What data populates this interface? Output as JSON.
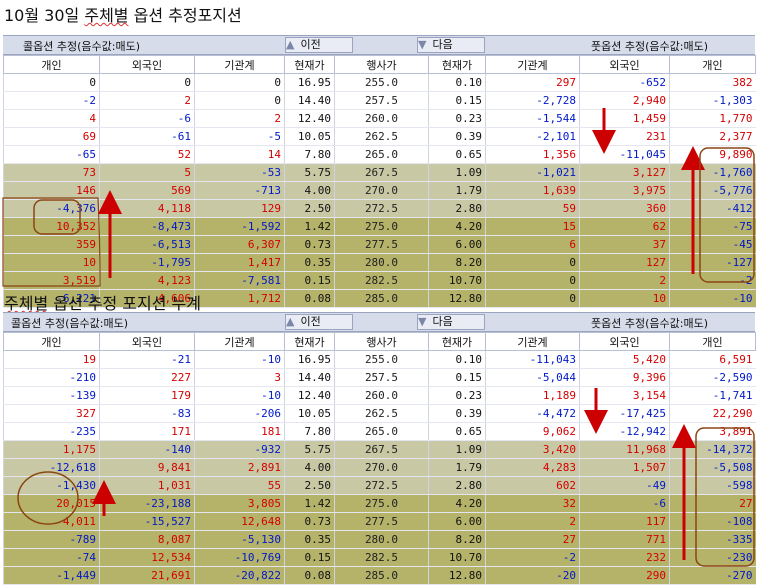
{
  "title1": {
    "pre": "10월 30일 ",
    "ul": "주체별",
    "post": " 옵션 추정포지션"
  },
  "title2": {
    "pre": "",
    "ul": "주체별",
    "post": " 옵션 추정 포지션 누계"
  },
  "header": {
    "call_label": "콜옵션 추정(음수값:매도)",
    "put_label": "풋옵션 추정(음수값:매도)",
    "prev_label": "이전",
    "next_label": "다음",
    "prev_icon": "triangle-up-icon",
    "next_icon": "triangle-down-icon"
  },
  "columns": [
    "개인",
    "외국인",
    "기관계",
    "현재가",
    "행사가",
    "현재가",
    "기관계",
    "외국인",
    "개인"
  ],
  "colors": {
    "positive": "#d40000",
    "negative": "#0018c8",
    "zero": "#111111",
    "header_bg": "#d7dceb",
    "strike_bg": "#f4ecc2",
    "olive": "#c8c9a4",
    "dark_olive": "#b5b26a",
    "annotation": "#cc0000",
    "circle": "#8b4513"
  },
  "table1": [
    {
      "cells": [
        "0",
        "0",
        "0",
        "16.95",
        "255.0",
        "0.10",
        "297",
        "-652",
        "382"
      ]
    },
    {
      "cells": [
        "-2",
        "2",
        "0",
        "14.40",
        "257.5",
        "0.15",
        "-2,728",
        "2,940",
        "-1,303"
      ]
    },
    {
      "cells": [
        "4",
        "-6",
        "2",
        "12.40",
        "260.0",
        "0.23",
        "-1,544",
        "1,459",
        "1,770"
      ]
    },
    {
      "cells": [
        "69",
        "-61",
        "-5",
        "10.05",
        "262.5",
        "0.39",
        "-2,101",
        "231",
        "2,377"
      ]
    },
    {
      "cells": [
        "-65",
        "52",
        "14",
        "7.80",
        "265.0",
        "0.65",
        "1,356",
        "-11,045",
        "9,890"
      ]
    },
    {
      "cells": [
        "73",
        "5",
        "-53",
        "5.75",
        "267.5",
        "1.09",
        "-1,021",
        "3,127",
        "-1,760"
      ]
    },
    {
      "cells": [
        "146",
        "569",
        "-713",
        "4.00",
        "270.0",
        "1.79",
        "1,639",
        "3,975",
        "-5,776"
      ]
    },
    {
      "cells": [
        "-4,376",
        "4,118",
        "129",
        "2.50",
        "272.5",
        "2.80",
        "59",
        "360",
        "-412"
      ]
    },
    {
      "cells": [
        "10,352",
        "-8,473",
        "-1,592",
        "1.42",
        "275.0",
        "4.20",
        "15",
        "62",
        "-75"
      ]
    },
    {
      "cells": [
        "359",
        "-6,513",
        "6,307",
        "0.73",
        "277.5",
        "6.00",
        "6",
        "37",
        "-45"
      ]
    },
    {
      "cells": [
        "10",
        "-1,795",
        "1,417",
        "0.35",
        "280.0",
        "8.20",
        "0",
        "127",
        "-127"
      ]
    },
    {
      "cells": [
        "3,519",
        "4,123",
        "-7,581",
        "0.15",
        "282.5",
        "10.70",
        "0",
        "2",
        "-2"
      ]
    },
    {
      "cells": [
        "-6,221",
        "4,606",
        "1,712",
        "0.08",
        "285.0",
        "12.80",
        "0",
        "10",
        "-10"
      ]
    }
  ],
  "table2": [
    {
      "cells": [
        "19",
        "-21",
        "-10",
        "16.95",
        "255.0",
        "0.10",
        "-11,043",
        "5,420",
        "6,591"
      ]
    },
    {
      "cells": [
        "-210",
        "227",
        "3",
        "14.40",
        "257.5",
        "0.15",
        "-5,044",
        "9,396",
        "-2,590"
      ]
    },
    {
      "cells": [
        "-139",
        "179",
        "-10",
        "12.40",
        "260.0",
        "0.23",
        "1,189",
        "3,154",
        "-1,741"
      ]
    },
    {
      "cells": [
        "327",
        "-83",
        "-206",
        "10.05",
        "262.5",
        "0.39",
        "-4,472",
        "-17,425",
        "22,290"
      ]
    },
    {
      "cells": [
        "-235",
        "171",
        "181",
        "7.80",
        "265.0",
        "0.65",
        "9,062",
        "-12,942",
        "3,891"
      ]
    },
    {
      "cells": [
        "1,175",
        "-140",
        "-932",
        "5.75",
        "267.5",
        "1.09",
        "3,420",
        "11,968",
        "-14,372"
      ]
    },
    {
      "cells": [
        "-12,618",
        "9,841",
        "2,891",
        "4.00",
        "270.0",
        "1.79",
        "4,283",
        "1,507",
        "-5,508"
      ]
    },
    {
      "cells": [
        "-1,430",
        "1,031",
        "55",
        "2.50",
        "272.5",
        "2.80",
        "602",
        "-49",
        "-598"
      ]
    },
    {
      "cells": [
        "20,015",
        "-23,188",
        "3,805",
        "1.42",
        "275.0",
        "4.20",
        "32",
        "-6",
        "27"
      ]
    },
    {
      "cells": [
        "4,011",
        "-15,527",
        "12,648",
        "0.73",
        "277.5",
        "6.00",
        "2",
        "117",
        "-108"
      ]
    },
    {
      "cells": [
        "-789",
        "8,087",
        "-5,130",
        "0.35",
        "280.0",
        "8.20",
        "27",
        "771",
        "-335"
      ]
    },
    {
      "cells": [
        "-74",
        "12,534",
        "-10,769",
        "0.15",
        "282.5",
        "10.70",
        "-2",
        "232",
        "-230"
      ]
    },
    {
      "cells": [
        "-1,449",
        "21,691",
        "-20,822",
        "0.08",
        "285.0",
        "12.80",
        "-20",
        "290",
        "-270"
      ]
    }
  ]
}
